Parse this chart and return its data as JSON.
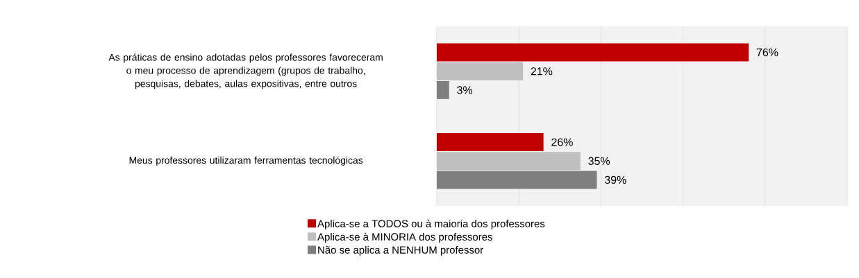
{
  "chart_data": {
    "type": "bar",
    "orientation": "horizontal",
    "categories": [
      "As práticas de ensino adotadas pelos professores favoreceram o meu processo de aprendizagem (grupos de trabalho, pesquisas, debates, aulas expositivas, entre outros",
      "Meus professores utilizaram ferramentas tecnológicas"
    ],
    "series": [
      {
        "name": "Aplica-se a TODOS ou à maioria dos professores",
        "color": "#c00000",
        "values": [
          76,
          26
        ],
        "value_labels": [
          "76%",
          "26%"
        ]
      },
      {
        "name": "Aplica-se à MINORIA dos professores",
        "color": "#bfbfbf",
        "values": [
          21,
          35
        ],
        "value_labels": [
          "21%",
          "35%"
        ]
      },
      {
        "name": "Não se aplica a NENHUM professor",
        "color": "#7f7f7f",
        "values": [
          3,
          39
        ],
        "value_labels": [
          "3%",
          "39%"
        ]
      }
    ],
    "xlim": [
      0,
      100
    ],
    "xticks": [
      {
        "value": 0,
        "label": null
      },
      {
        "value": 20,
        "label": null
      },
      {
        "value": 40,
        "label": null
      },
      {
        "value": 60,
        "label": null
      },
      {
        "value": 80,
        "label": null
      },
      {
        "value": 100,
        "label": null
      }
    ],
    "grid": "x",
    "legend": "bottom",
    "tick_labels": "y"
  }
}
